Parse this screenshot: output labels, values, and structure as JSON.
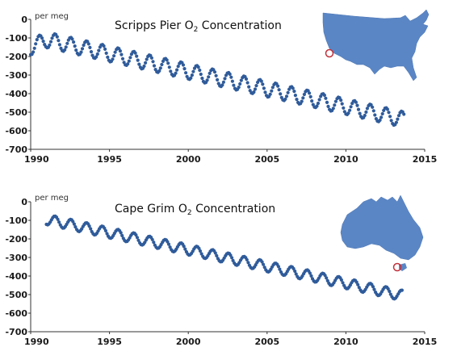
{
  "chart_data": [
    {
      "type": "scatter",
      "title": {
        "prefix": "Scripps Pier O",
        "sub": "2",
        "suffix": " Concentration"
      },
      "unit_label": "per meg",
      "xlim": [
        1990,
        2015
      ],
      "ylim": [
        -700,
        0
      ],
      "x_ticks": [
        1990,
        1995,
        2000,
        2005,
        2010,
        2015
      ],
      "y_ticks": [
        0,
        -100,
        -200,
        -300,
        -400,
        -500,
        -600,
        -700
      ],
      "x_tick_labels": [
        "1990",
        "1995",
        "2000",
        "2005",
        "2010",
        "2015"
      ],
      "y_tick_labels": [
        "0",
        "-100",
        "-200",
        "-300",
        "-400",
        "-500",
        "-600",
        "-700"
      ],
      "grid": false,
      "point_color": "#2f5b9a",
      "inset_map": "usa-map",
      "map_color": "#5b86c5",
      "marker_color": "#c0303a",
      "series_model": {
        "start": 1990.0,
        "end": 2013.7,
        "step": 0.08,
        "base": -105,
        "trend_per_year": -18.5,
        "seasonal_amplitude": 42
      },
      "trend_breaks": [
        {
          "x": 1990.0,
          "y": -150
        },
        {
          "x": 1991.0,
          "y": -110
        },
        {
          "x": 2013.7,
          "y": -540
        }
      ]
    },
    {
      "type": "scatter",
      "title": {
        "prefix": "Cape Grim O",
        "sub": "2",
        "suffix": " Concentration"
      },
      "unit_label": "per meg",
      "xlim": [
        1990,
        2015
      ],
      "ylim": [
        -700,
        0
      ],
      "x_ticks": [
        1990,
        1995,
        2000,
        2005,
        2010,
        2015
      ],
      "y_ticks": [
        0,
        -100,
        -200,
        -300,
        -400,
        -500,
        -600,
        -700
      ],
      "x_tick_labels": [
        "1990",
        "1995",
        "2000",
        "2005",
        "2010",
        "2015"
      ],
      "y_tick_labels": [
        "0",
        "-100",
        "-200",
        "-300",
        "-400",
        "-500",
        "-600",
        "-700"
      ],
      "grid": false,
      "point_color": "#2f5b9a",
      "inset_map": "australia-map",
      "map_color": "#5b86c5",
      "marker_color": "#c0303a",
      "series_model": {
        "start": 1991.0,
        "end": 2013.6,
        "step": 0.08,
        "base": -95,
        "trend_per_year": -19.0,
        "seasonal_amplitude": 28
      },
      "trend_breaks": [
        {
          "x": 1991.0,
          "y": -95
        },
        {
          "x": 2013.6,
          "y": -505
        }
      ]
    }
  ]
}
